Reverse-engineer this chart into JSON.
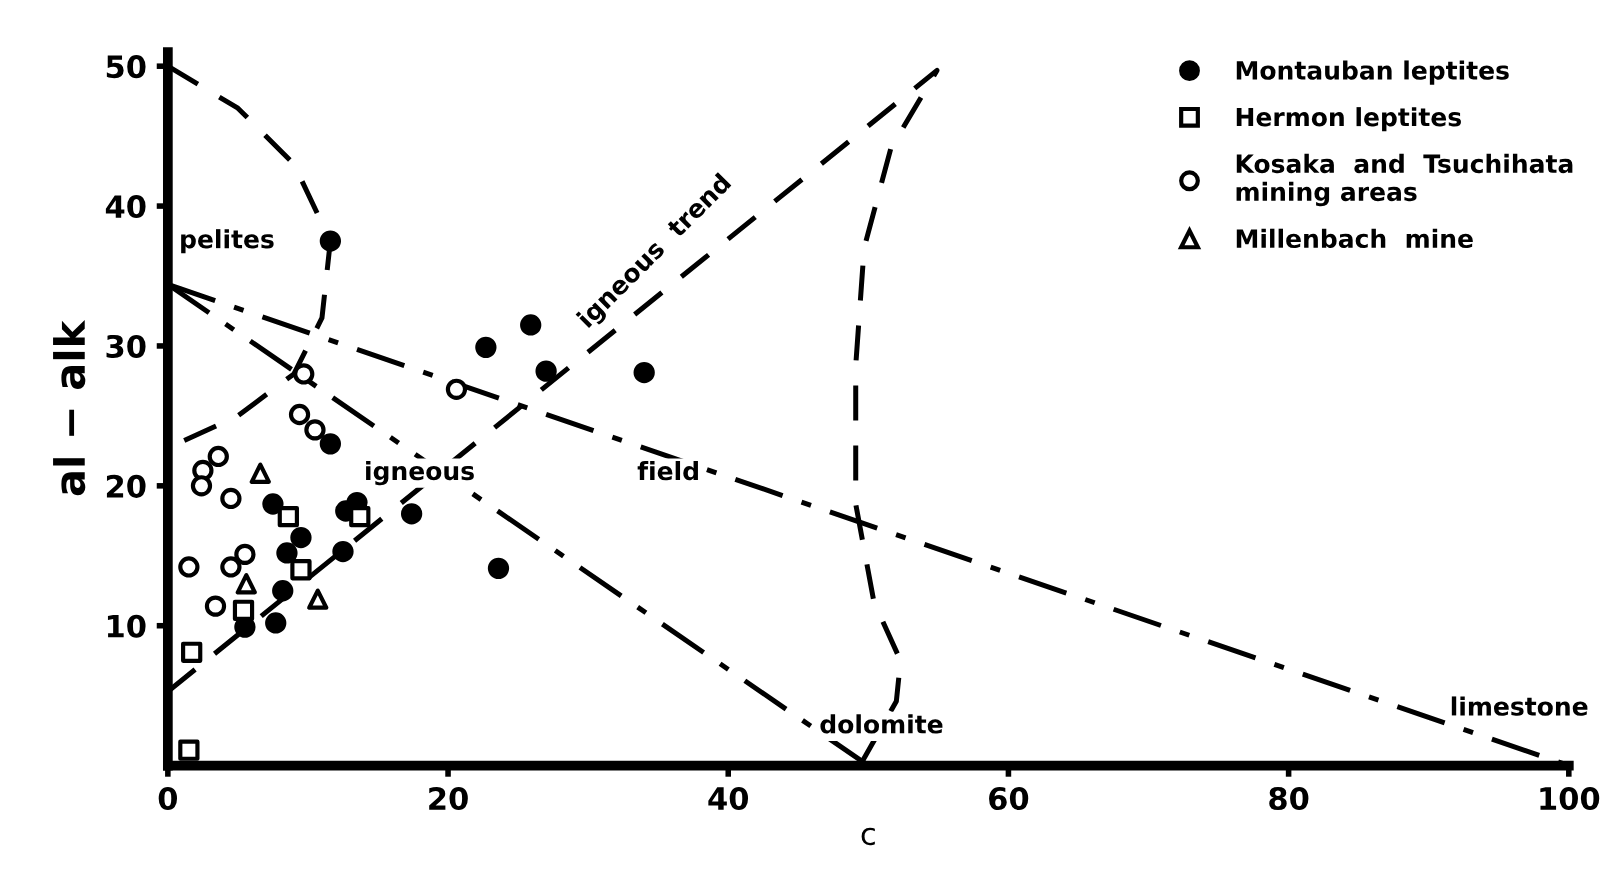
{
  "chart_data": {
    "type": "scatter",
    "xlabel": "c",
    "ylabel": "al − alk",
    "xlim": [
      0,
      100
    ],
    "ylim": [
      0,
      51
    ],
    "xticks": [
      0,
      20,
      40,
      60,
      80,
      100
    ],
    "yticks": [
      10,
      20,
      30,
      40,
      50
    ],
    "grid": false,
    "legend": "top right",
    "series": [
      {
        "name": "Montauban leptites",
        "marker": "circle",
        "color": "#000000",
        "x": [
          11.6,
          7.5,
          9.5,
          8.5,
          12.7,
          13.5,
          12.5,
          8.2,
          5.5,
          7.7,
          11.6,
          22.7,
          25.9,
          27.0,
          34.0,
          17.4,
          23.6
        ],
        "values": [
          23.0,
          18.7,
          16.3,
          15.2,
          18.2,
          18.8,
          15.3,
          12.5,
          9.9,
          10.2,
          37.5,
          29.9,
          31.5,
          28.2,
          28.1,
          18.0,
          14.1
        ]
      },
      {
        "name": "Hermon leptites",
        "marker": "square-open",
        "color": "#000000",
        "x": [
          1.7,
          1.5,
          5.4,
          8.6,
          9.5,
          13.7
        ],
        "values": [
          8.1,
          1.1,
          11.1,
          17.8,
          14.0,
          17.8
        ]
      },
      {
        "name": "Kosaka  and  Tsuchihata\nmining areas",
        "marker": "circle-open",
        "color": "#000000",
        "x": [
          9.7,
          9.4,
          10.5,
          2.5,
          3.6,
          2.4,
          4.5,
          1.5,
          4.5,
          5.5,
          3.4,
          20.6
        ],
        "values": [
          28.0,
          25.1,
          24.0,
          21.1,
          22.1,
          20.0,
          19.1,
          14.2,
          14.2,
          15.1,
          11.4,
          26.9
        ]
      },
      {
        "name": "Millenbach  mine",
        "marker": "triangle-open",
        "color": "#000000",
        "x": [
          6.6,
          5.6,
          10.7
        ],
        "values": [
          20.9,
          13.0,
          11.9
        ]
      },
      {
        "type": "line",
        "line_style": "dashed",
        "color": "#000000",
        "x": [
          0,
          5,
          9,
          11.6,
          11,
          9,
          5,
          0
        ],
        "values": [
          50,
          47,
          43,
          37.5,
          32,
          28,
          25,
          22.7
        ]
      },
      {
        "type": "line",
        "line_style": "dashed",
        "color": "#000000",
        "x": [
          0,
          54.9,
          51.6,
          49.7,
          49.1,
          49.1,
          50.4,
          52.3,
          52,
          49.4
        ],
        "values": [
          5.3,
          49.7,
          44.1,
          37.0,
          28.6,
          18.7,
          11.7,
          7.5,
          4.6,
          0
        ]
      },
      {
        "type": "line",
        "line_style": "dashdot",
        "color": "#000000",
        "x": [
          0,
          100
        ],
        "values": [
          34.4,
          0
        ]
      },
      {
        "type": "line",
        "line_style": "dashdot",
        "color": "#000000",
        "x": [
          0,
          50
        ],
        "values": [
          34.4,
          0
        ]
      }
    ],
    "annotations": [
      "pelites",
      "igneous  trend",
      "igneous",
      "field",
      "dolomite",
      "limestone"
    ]
  }
}
